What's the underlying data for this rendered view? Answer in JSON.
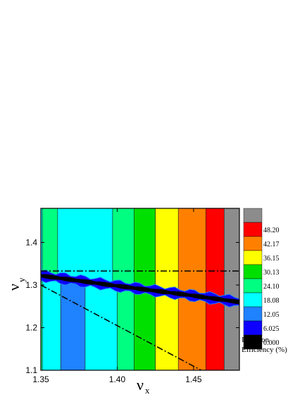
{
  "chart_data": {
    "type": "heatmap",
    "title": "",
    "xlabel": "ν",
    "xlabel_sub": "x",
    "ylabel": "ν",
    "ylabel_sub": "y",
    "xlim": [
      1.35,
      1.48
    ],
    "ylim": [
      1.1,
      1.48
    ],
    "xticks": [
      1.35,
      1.4,
      1.45
    ],
    "xtick_labels": [
      "1.35",
      "1.40",
      "1.45"
    ],
    "yticks": [
      1.1,
      1.2,
      1.3,
      1.4
    ],
    "ytick_labels": [
      "1.1",
      "1.2",
      "1.3",
      "1.4"
    ],
    "colorbar": {
      "title_lines": [
        "Injection",
        "Efficiency (%)"
      ],
      "levels": [
        "0.000",
        "6.025",
        "12.05",
        "18.08",
        "24.10",
        "30.13",
        "36.15",
        "42.17",
        "48.20"
      ],
      "colors": [
        "#000000",
        "#0d00ff",
        "#1f82ff",
        "#00ffff",
        "#00ff80",
        "#00e000",
        "#ffff00",
        "#ff8000",
        "#ff0000",
        "#8c8c8c"
      ]
    },
    "upper_bands": [
      {
        "x_start": 1.35,
        "x_end": 1.351,
        "value_level": 3
      },
      {
        "x_start": 1.351,
        "x_end": 1.361,
        "value_level": 4
      },
      {
        "x_start": 1.361,
        "x_end": 1.397,
        "value_level": 3
      },
      {
        "x_start": 1.397,
        "x_end": 1.411,
        "value_level": 4
      },
      {
        "x_start": 1.411,
        "x_end": 1.425,
        "value_level": 5
      },
      {
        "x_start": 1.425,
        "x_end": 1.44,
        "value_level": 6
      },
      {
        "x_start": 1.44,
        "x_end": 1.458,
        "value_level": 7
      },
      {
        "x_start": 1.458,
        "x_end": 1.47,
        "value_level": 8
      },
      {
        "x_start": 1.47,
        "x_end": 1.48,
        "value_level": 9
      }
    ],
    "lower_bands": [
      {
        "x_start": 1.35,
        "x_end": 1.351,
        "value_level": 4
      },
      {
        "x_start": 1.351,
        "x_end": 1.363,
        "value_level": 3
      },
      {
        "x_start": 1.363,
        "x_end": 1.379,
        "value_level": 2
      },
      {
        "x_start": 1.379,
        "x_end": 1.4,
        "value_level": 3
      },
      {
        "x_start": 1.4,
        "x_end": 1.411,
        "value_level": 4
      },
      {
        "x_start": 1.411,
        "x_end": 1.425,
        "value_level": 5
      },
      {
        "x_start": 1.425,
        "x_end": 1.44,
        "value_level": 6
      },
      {
        "x_start": 1.44,
        "x_end": 1.458,
        "value_level": 7
      },
      {
        "x_start": 1.458,
        "x_end": 1.47,
        "value_level": 8
      },
      {
        "x_start": 1.47,
        "x_end": 1.48,
        "value_level": 9
      }
    ],
    "resonance_band": {
      "points": [
        [
          1.35,
          1.322
        ],
        [
          1.4,
          1.298
        ],
        [
          1.45,
          1.275
        ],
        [
          1.48,
          1.26
        ]
      ],
      "value_level": 1,
      "core_value_level": 0
    },
    "reference_lines": [
      {
        "style": "dash-dot",
        "points": [
          [
            1.35,
            1.333
          ],
          [
            1.48,
            1.333
          ]
        ]
      },
      {
        "style": "dash-dot",
        "points": [
          [
            1.35,
            1.3
          ],
          [
            1.455,
            1.1
          ]
        ]
      },
      {
        "style": "dash-dot",
        "points": [
          [
            1.35,
            1.32
          ],
          [
            1.48,
            1.262
          ]
        ]
      }
    ]
  }
}
